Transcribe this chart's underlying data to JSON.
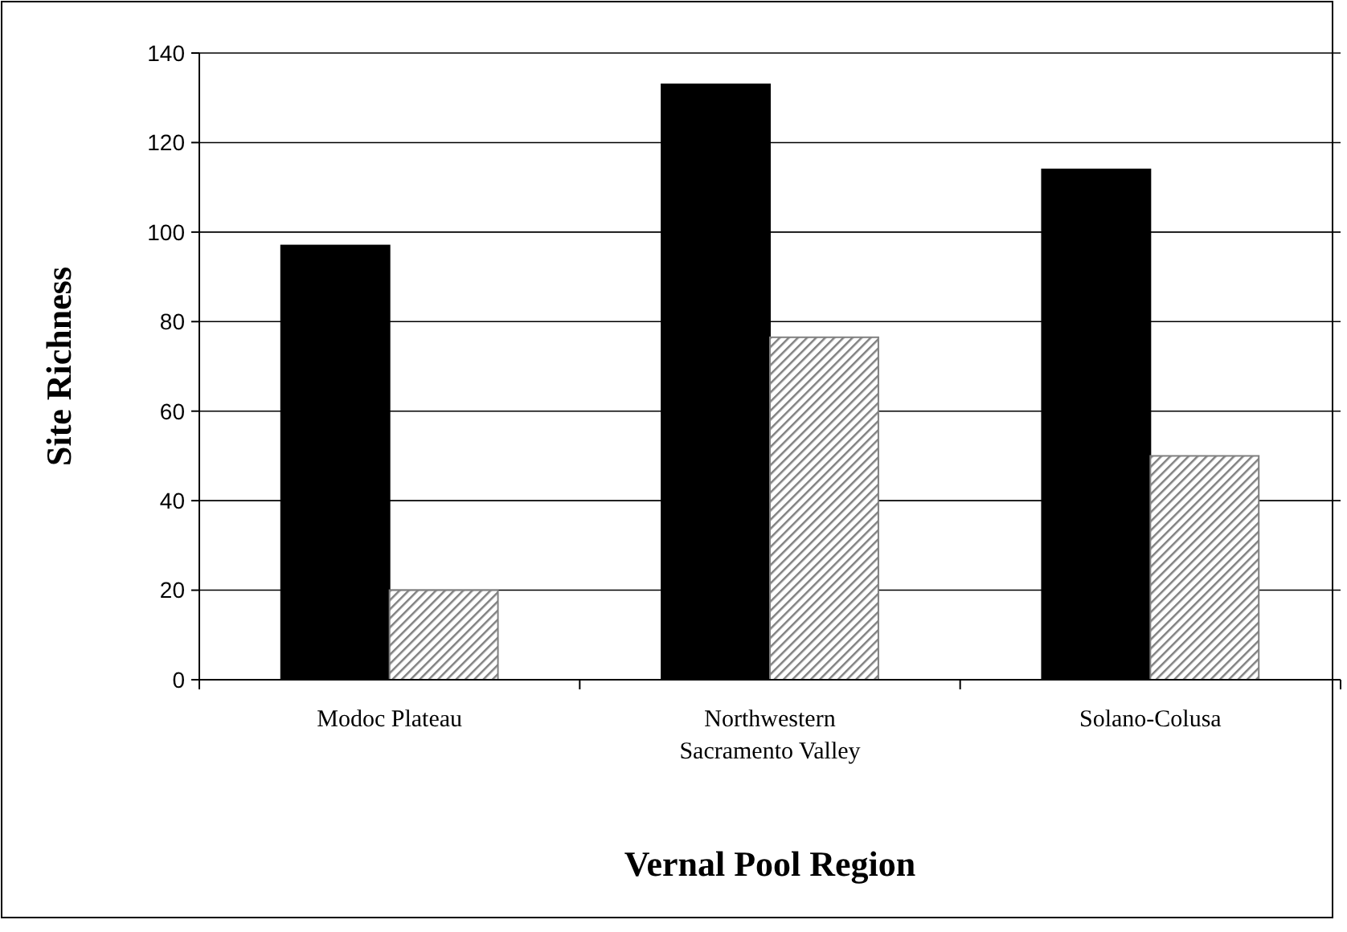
{
  "chart_data": {
    "type": "bar",
    "xlabel": "Vernal Pool Region",
    "ylabel": "Site Richness",
    "categories": [
      "Modoc Plateau",
      "Northwestern Sacramento Valley",
      "Solano-Colusa"
    ],
    "series": [
      {
        "color": "#000000",
        "values": [
          97,
          133,
          114
        ]
      },
      {
        "color": "#808080",
        "values": [
          20,
          76.5,
          50
        ]
      }
    ],
    "ylim": [
      0,
      140
    ],
    "yticks": [
      0,
      20,
      40,
      60,
      80,
      100,
      120,
      140
    ],
    "grid": "y"
  }
}
